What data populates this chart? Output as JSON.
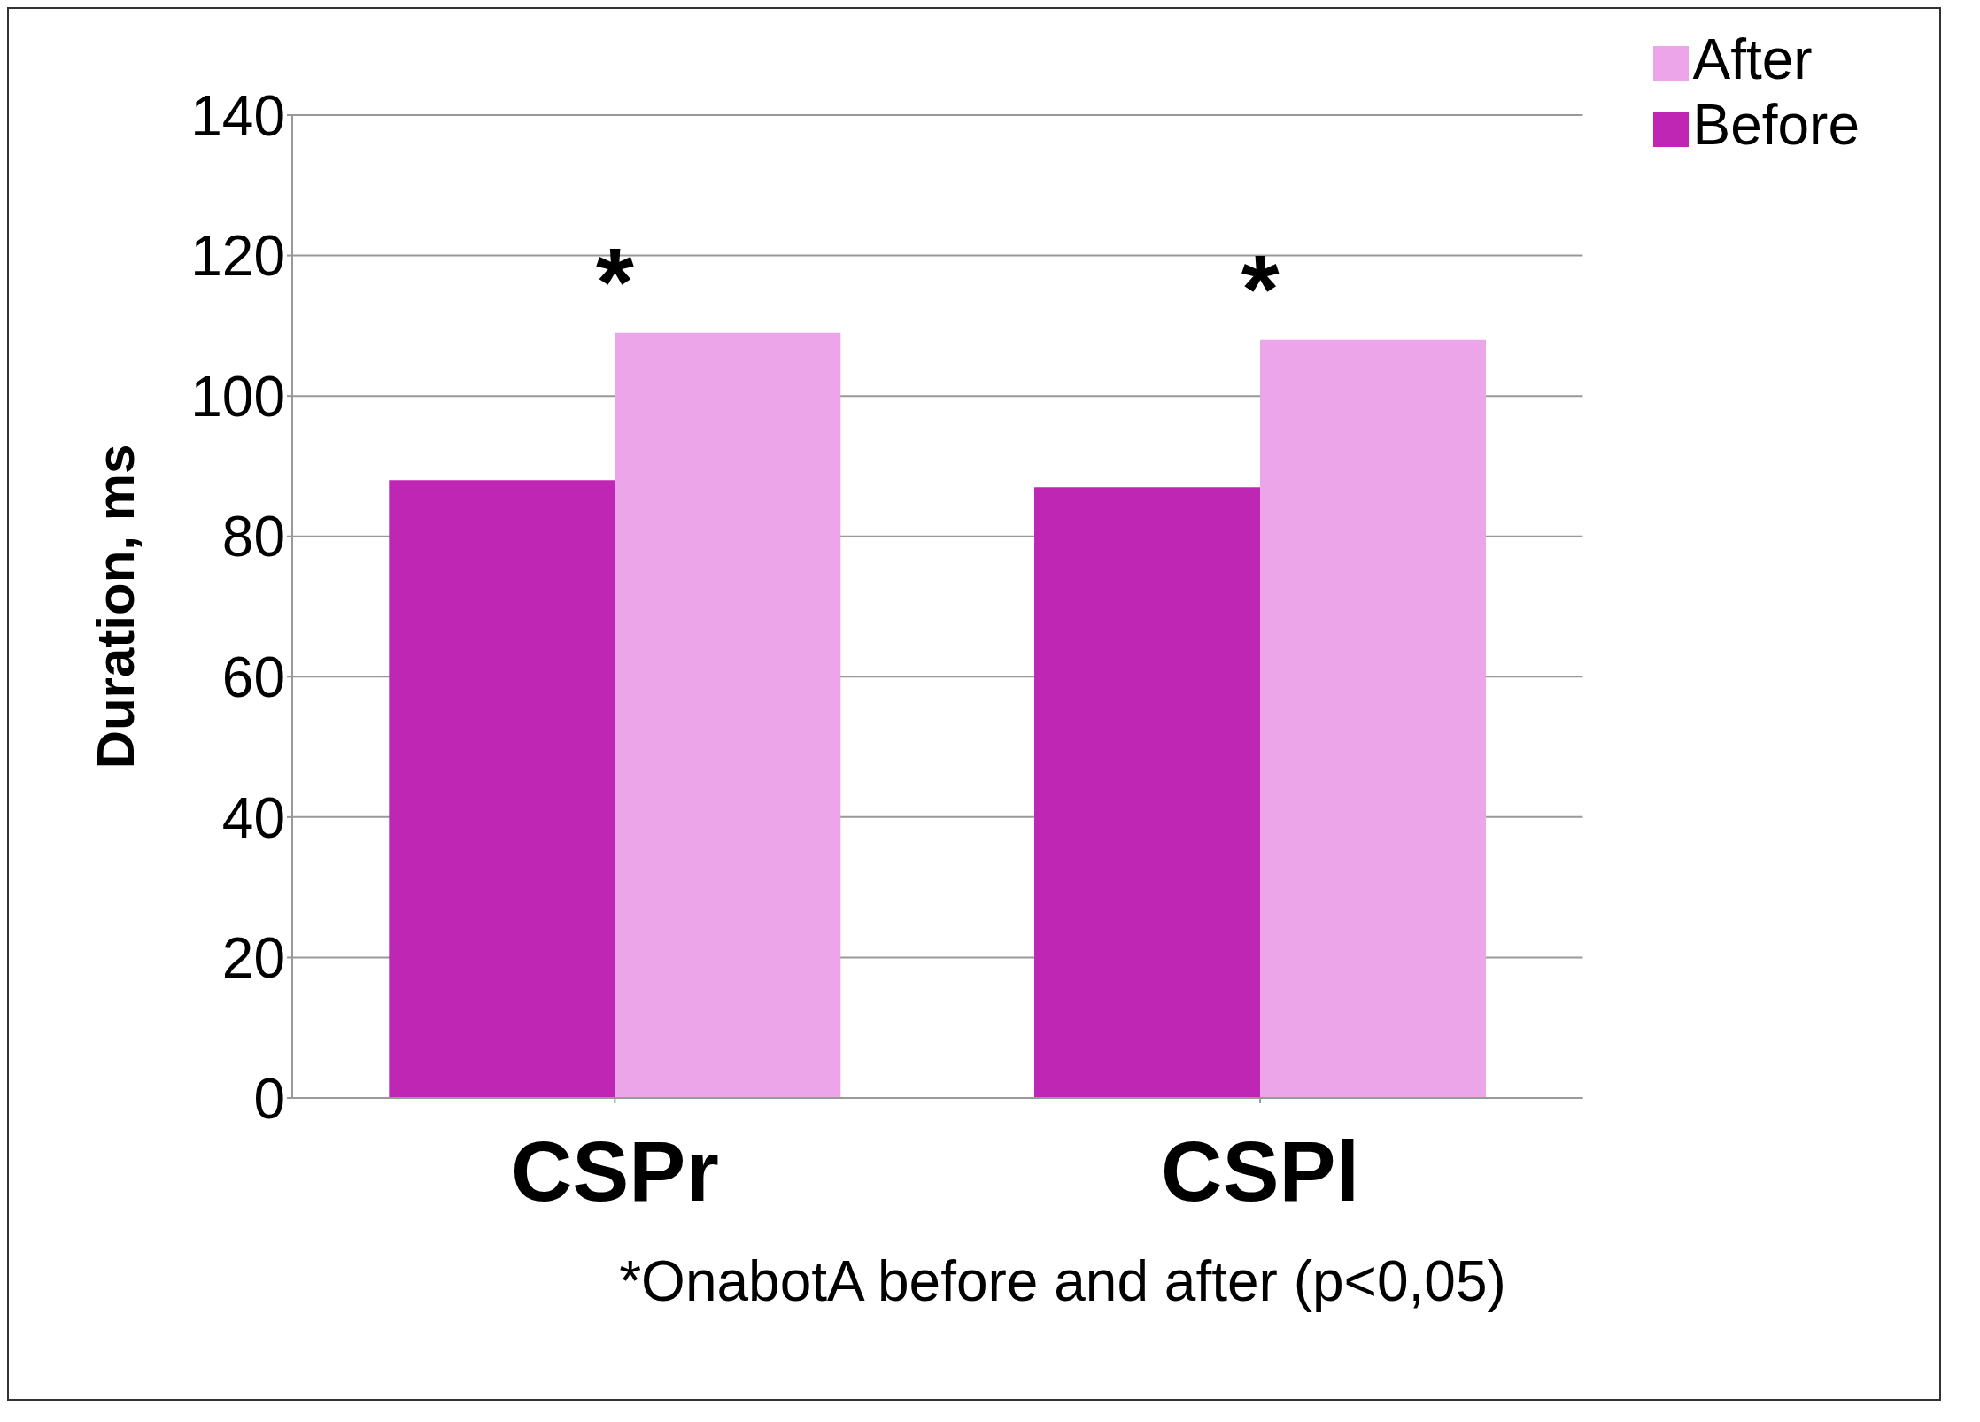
{
  "chart_data": {
    "type": "bar",
    "ylabel": "Duration, ms",
    "categories": [
      "CSPr",
      "CSPl"
    ],
    "series": [
      {
        "name": "Before",
        "color": "#c026b4",
        "values": [
          88,
          87
        ]
      },
      {
        "name": "After",
        "color": "#eba5e8",
        "values": [
          109,
          108
        ]
      }
    ],
    "ylim": [
      0,
      140
    ],
    "yticks": [
      0,
      20,
      40,
      60,
      80,
      100,
      120,
      140
    ],
    "grid": "y",
    "legend": "top right",
    "annotations": [
      {
        "text": "*",
        "x": "CSPr",
        "y": 109
      },
      {
        "text": "*",
        "x": "CSPl",
        "y": 108
      },
      "*OnabotA before and after (p<0,05)"
    ]
  }
}
